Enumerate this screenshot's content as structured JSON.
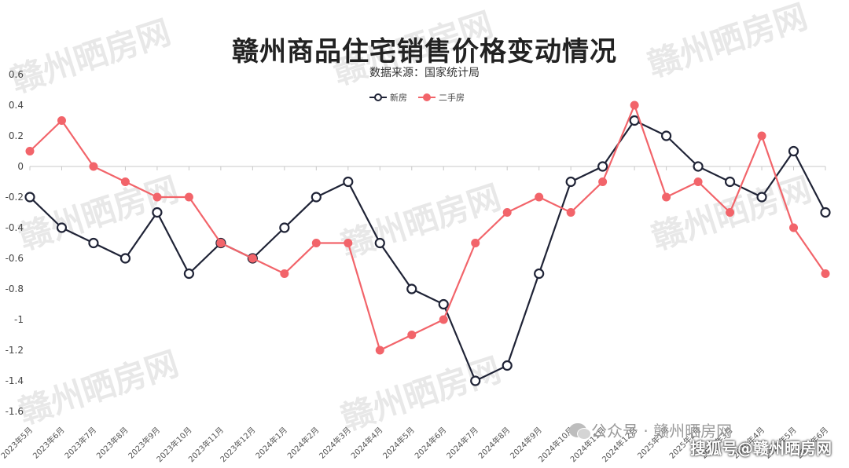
{
  "chart_data": {
    "type": "line",
    "title": "赣州商品住宅销售价格变动情况",
    "subtitle": "数据来源：国家统计局",
    "categories": [
      "2023年5月",
      "2023年6月",
      "2023年7月",
      "2023年8月",
      "2023年9月",
      "2023年10月",
      "2023年11月",
      "2023年12月",
      "2024年1月",
      "2024年2月",
      "2024年3月",
      "2024年4月",
      "2024年5月",
      "2024年6月",
      "2024年7月",
      "2024年8月",
      "2024年9月",
      "2024年10月",
      "2024年11月",
      "2024年12月",
      "2025年1月",
      "2025年2月",
      "2025年3月",
      "2025年4月",
      "2025年5月",
      "2025年6月"
    ],
    "series": [
      {
        "name": "新房",
        "color": "#1f2336",
        "values": [
          -0.2,
          -0.4,
          -0.5,
          -0.6,
          -0.3,
          -0.7,
          -0.5,
          -0.6,
          -0.4,
          -0.2,
          -0.1,
          -0.5,
          -0.8,
          -0.9,
          -1.4,
          -1.3,
          -0.7,
          -0.1,
          0.0,
          0.3,
          0.2,
          0.0,
          -0.1,
          -0.2,
          0.1,
          -0.3
        ]
      },
      {
        "name": "二手房",
        "color": "#f2646a",
        "values": [
          0.1,
          0.3,
          0.0,
          -0.1,
          -0.2,
          -0.2,
          -0.5,
          -0.6,
          -0.7,
          -0.5,
          -0.5,
          -1.2,
          -1.1,
          -1.0,
          -0.5,
          -0.3,
          -0.2,
          -0.3,
          -0.1,
          0.4,
          -0.2,
          -0.1,
          -0.3,
          0.2,
          -0.4,
          -0.7
        ]
      }
    ],
    "ylim": [
      -1.6,
      0.6
    ],
    "yticks": [
      "0.6",
      "0.4",
      "0.2",
      "0",
      "-0.2",
      "-0.4",
      "-0.6",
      "-0.8",
      "-1",
      "-1.2",
      "-1.4",
      "-1.6"
    ],
    "legend_position": "top-center",
    "grid": false
  },
  "watermark": "赣州晒房网",
  "footer": {
    "wechat": "公众号 · 赣州晒房网",
    "source": "搜狐号@赣州晒房网"
  }
}
